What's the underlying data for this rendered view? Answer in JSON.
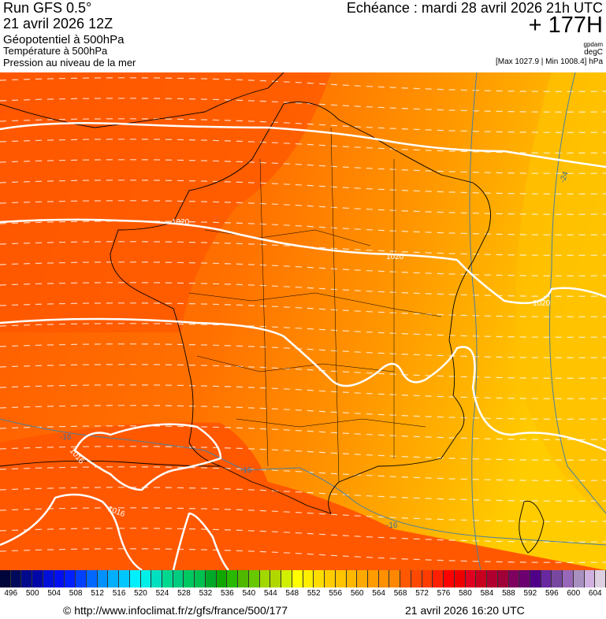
{
  "header": {
    "run": "Run GFS 0.5°",
    "run_date": "21 avril 2026 12Z",
    "field_1": "Géopotentiel à 500hPa",
    "field_2": "Température à 500hPa",
    "field_3": "Pression au niveau de la mer",
    "echeance": "Echéance : mardi 28 avril 2026 21h UTC",
    "lead_time": "+ 177H",
    "unit_1": "gpdam",
    "unit_2": "degC",
    "minmax": "[Max 1027.9 | Min 1008.4] hPa"
  },
  "map": {
    "region": "France",
    "isobar_labels": [
      "1020",
      "1020",
      "1020",
      "1016",
      "1016"
    ],
    "temperature_labels": [
      "-16",
      "-16",
      "-16",
      "-24"
    ],
    "colors": {
      "isobar": "#ffffff",
      "isotherm": "#4a7fa0",
      "geopotential_dashed": "#ffffff",
      "borders": "#000000"
    }
  },
  "color_scale": {
    "unit": "gpdam",
    "labels": [
      "496",
      "500",
      "504",
      "508",
      "512",
      "516",
      "520",
      "524",
      "528",
      "532",
      "536",
      "540",
      "544",
      "548",
      "552",
      "556",
      "560",
      "564",
      "568",
      "572",
      "576",
      "580",
      "584",
      "588",
      "592",
      "596",
      "600",
      "604"
    ],
    "colors": [
      "#00053a",
      "#000a5a",
      "#000a8a",
      "#0008a8",
      "#0010d8",
      "#0010f0",
      "#0020ff",
      "#0040ff",
      "#0068ff",
      "#0090ff",
      "#00b0ff",
      "#00c8ff",
      "#00f0ff",
      "#00f0e8",
      "#00e0c0",
      "#00d890",
      "#00cc80",
      "#00c860",
      "#00c050",
      "#00a828",
      "#10a800",
      "#28b800",
      "#50b800",
      "#68c800",
      "#a0d800",
      "#b0d800",
      "#d0f000",
      "#ffff00",
      "#ffee00",
      "#ffdd00",
      "#ffcc00",
      "#ffc400",
      "#ffb800",
      "#ffaa00",
      "#ff9c00",
      "#ff9000",
      "#ff8800",
      "#ff5800",
      "#ff4800",
      "#ff3c00",
      "#ff2000",
      "#ff0000",
      "#ee0000",
      "#e00020",
      "#c80020",
      "#b00030",
      "#a00038",
      "#800060",
      "#6c0070",
      "#500088",
      "#6828a0",
      "#7848a0",
      "#9868b8",
      "#a890c0",
      "#d0b0e0",
      "#ddd0e0"
    ]
  },
  "footer": {
    "copyright": "© http://www.infoclimat.fr/z/gfs/france/500/177",
    "generated": "21 avril 2026 16:20 UTC"
  }
}
